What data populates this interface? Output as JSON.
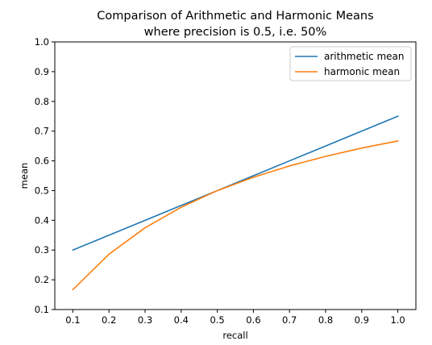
{
  "chart_data": {
    "type": "line",
    "title_lines": [
      "Comparison of Arithmetic and Harmonic Means",
      "where precision is 0.5, i.e. 50%"
    ],
    "xlabel": "recall",
    "ylabel": "mean",
    "x": [
      0.1,
      0.2,
      0.3,
      0.4,
      0.5,
      0.6,
      0.7,
      0.8,
      0.9,
      1.0
    ],
    "xticks": [
      "0.1",
      "0.2",
      "0.3",
      "0.4",
      "0.5",
      "0.6",
      "0.7",
      "0.8",
      "0.9",
      "1.0"
    ],
    "yticks": [
      "0.1",
      "0.2",
      "0.3",
      "0.4",
      "0.5",
      "0.6",
      "0.7",
      "0.8",
      "0.9",
      "1.0"
    ],
    "xlim": [
      0.05,
      1.05
    ],
    "ylim": [
      0.1,
      1.0
    ],
    "grid": false,
    "legend_position": "top-right",
    "series": [
      {
        "name": "arithmetic mean",
        "color": "#1f77b4",
        "values": [
          0.3,
          0.35,
          0.4,
          0.45,
          0.5,
          0.55,
          0.6,
          0.65,
          0.7,
          0.75
        ]
      },
      {
        "name": "harmonic mean",
        "color": "#ff7f0e",
        "values": [
          0.167,
          0.286,
          0.375,
          0.444,
          0.5,
          0.545,
          0.583,
          0.615,
          0.643,
          0.667
        ]
      }
    ]
  }
}
